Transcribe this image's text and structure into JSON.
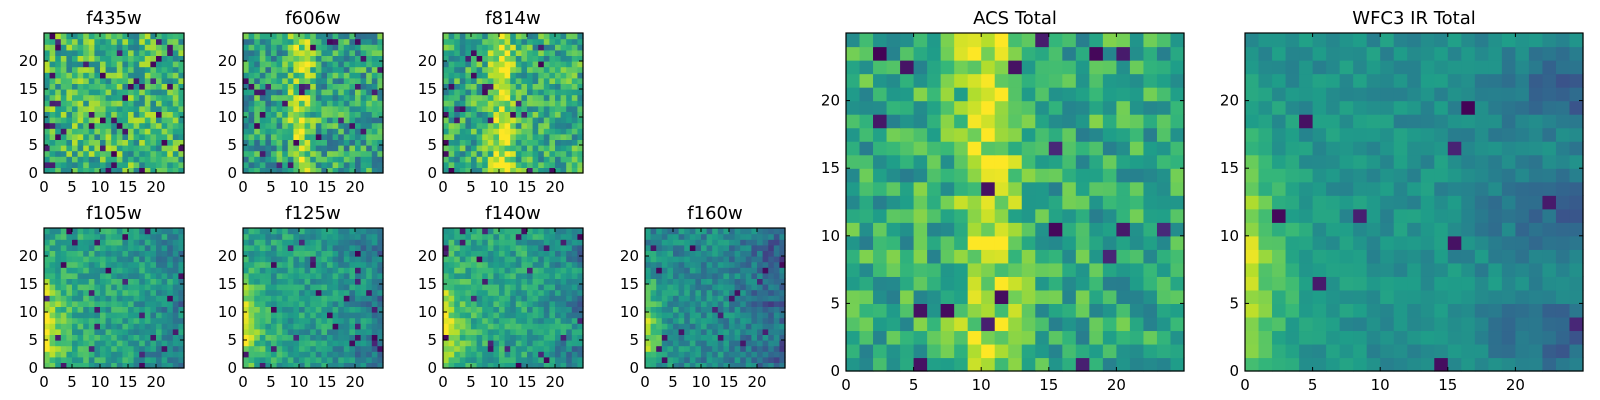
{
  "chart_data": [
    {
      "type": "heatmap",
      "title": "f435w",
      "colormap": "viridis",
      "grid": [
        25,
        25
      ],
      "xlim": [
        0,
        25
      ],
      "ylim": [
        0,
        25
      ],
      "x_ticks": [
        0,
        5,
        10,
        15,
        20
      ],
      "y_ticks": [
        0,
        5,
        10,
        15,
        20
      ],
      "pattern": "noise",
      "seed": 11,
      "base": 0.66,
      "noise": 0.24,
      "dark_fraction": 0.06
    },
    {
      "type": "heatmap",
      "title": "f606w",
      "colormap": "viridis",
      "grid": [
        25,
        25
      ],
      "xlim": [
        0,
        25
      ],
      "ylim": [
        0,
        25
      ],
      "x_ticks": [
        0,
        5,
        10,
        15,
        20
      ],
      "y_ticks": [
        0,
        5,
        10,
        15,
        20
      ],
      "pattern": "stripe",
      "seed": 23,
      "base": 0.58,
      "noise": 0.24,
      "dark_fraction": 0.04
    },
    {
      "type": "heatmap",
      "title": "f814w",
      "colormap": "viridis",
      "grid": [
        25,
        25
      ],
      "xlim": [
        0,
        25
      ],
      "ylim": [
        0,
        25
      ],
      "x_ticks": [
        0,
        5,
        10,
        15,
        20
      ],
      "y_ticks": [
        0,
        5,
        10,
        15,
        20
      ],
      "pattern": "stripe",
      "seed": 37,
      "base": 0.62,
      "noise": 0.22,
      "dark_fraction": 0.04
    },
    {
      "type": "heatmap",
      "title": "ACS Total",
      "colormap": "viridis",
      "grid": [
        25,
        25
      ],
      "xlim": [
        0,
        25
      ],
      "ylim": [
        0,
        25
      ],
      "x_ticks": [
        0,
        5,
        10,
        15,
        20
      ],
      "y_ticks": [
        0,
        5,
        10,
        15,
        20
      ],
      "pattern": "stripe",
      "seed": 53,
      "base": 0.62,
      "noise": 0.2,
      "dark_fraction": 0.04
    },
    {
      "type": "heatmap",
      "title": "f105w",
      "colormap": "viridis",
      "grid": [
        25,
        25
      ],
      "xlim": [
        0,
        25
      ],
      "ylim": [
        0,
        25
      ],
      "x_ticks": [
        0,
        5,
        10,
        15,
        20
      ],
      "y_ticks": [
        0,
        5,
        10,
        15,
        20
      ],
      "pattern": "ir",
      "seed": 67,
      "base": 0.58,
      "noise": 0.14,
      "dark_fraction": 0.03
    },
    {
      "type": "heatmap",
      "title": "f125w",
      "colormap": "viridis",
      "grid": [
        25,
        25
      ],
      "xlim": [
        0,
        25
      ],
      "ylim": [
        0,
        25
      ],
      "x_ticks": [
        0,
        5,
        10,
        15,
        20
      ],
      "y_ticks": [
        0,
        5,
        10,
        15,
        20
      ],
      "pattern": "ir",
      "seed": 79,
      "base": 0.55,
      "noise": 0.14,
      "dark_fraction": 0.04
    },
    {
      "type": "heatmap",
      "title": "f140w",
      "colormap": "viridis",
      "grid": [
        25,
        25
      ],
      "xlim": [
        0,
        25
      ],
      "ylim": [
        0,
        25
      ],
      "x_ticks": [
        0,
        5,
        10,
        15,
        20
      ],
      "y_ticks": [
        0,
        5,
        10,
        15,
        20
      ],
      "pattern": "ir",
      "seed": 97,
      "base": 0.58,
      "noise": 0.14,
      "dark_fraction": 0.04
    },
    {
      "type": "heatmap",
      "title": "f160w",
      "colormap": "viridis",
      "grid": [
        25,
        25
      ],
      "xlim": [
        0,
        25
      ],
      "ylim": [
        0,
        25
      ],
      "x_ticks": [
        0,
        5,
        10,
        15,
        20
      ],
      "y_ticks": [
        0,
        5,
        10,
        15,
        20
      ],
      "pattern": "ir",
      "seed": 109,
      "base": 0.46,
      "noise": 0.14,
      "dark_fraction": 0.04
    },
    {
      "type": "heatmap",
      "title": "WFC3 IR Total",
      "colormap": "viridis",
      "grid": [
        25,
        25
      ],
      "xlim": [
        0,
        25
      ],
      "ylim": [
        0,
        25
      ],
      "x_ticks": [
        0,
        5,
        10,
        15,
        20
      ],
      "y_ticks": [
        0,
        5,
        10,
        15,
        20
      ],
      "pattern": "ir",
      "seed": 131,
      "base": 0.5,
      "noise": 0.08,
      "dark_fraction": 0.02
    }
  ]
}
